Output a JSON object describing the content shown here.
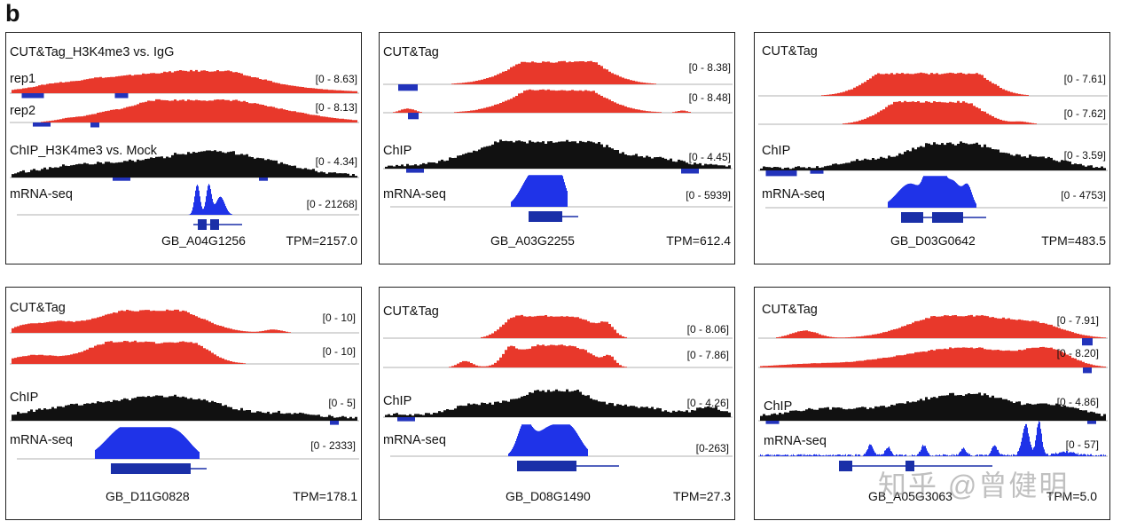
{
  "panel_letter": "b",
  "panels": [
    {
      "tracks": [
        {
          "label": "CUT&Tag_H3K4me3 vs. IgG",
          "range": ""
        },
        {
          "label": "rep1",
          "range": "[0 - 8.63]"
        },
        {
          "label": "rep2",
          "range": "[0 - 8.13]"
        },
        {
          "label": "ChIP_H3K4me3 vs. Mock",
          "range": "[0 - 4.34]"
        },
        {
          "label": "mRNA-seq",
          "range": "[0 - 21268]"
        }
      ],
      "gene": "GB_A04G1256",
      "tpm": "TPM=2157.0"
    },
    {
      "tracks": [
        {
          "label": "CUT&Tag",
          "range": "[0 - 8.38]"
        },
        {
          "label": "",
          "range": "[0 - 8.48]"
        },
        {
          "label": "ChIP",
          "range": "[0 - 4.45]"
        },
        {
          "label": "mRNA-seq",
          "range": "[0 - 5939]"
        }
      ],
      "gene": "GB_A03G2255",
      "tpm": "TPM=612.4"
    },
    {
      "tracks": [
        {
          "label": "CUT&Tag",
          "range": "[0 - 7.61]"
        },
        {
          "label": "",
          "range": "[0 - 7.62]"
        },
        {
          "label": "ChIP",
          "range": "[0 - 3.59]"
        },
        {
          "label": "mRNA-seq",
          "range": "[0 - 4753]"
        }
      ],
      "gene": "GB_D03G0642",
      "tpm": "TPM=483.5"
    },
    {
      "tracks": [
        {
          "label": "CUT&Tag",
          "range": "[0 - 10]"
        },
        {
          "label": "",
          "range": "[0 - 10]"
        },
        {
          "label": "ChIP",
          "range": "[0 - 5]"
        },
        {
          "label": "mRNA-seq",
          "range": "[0 - 2333]"
        }
      ],
      "gene": "GB_D11G0828",
      "tpm": "TPM=178.1"
    },
    {
      "tracks": [
        {
          "label": "CUT&Tag",
          "range": "[0 - 8.06]"
        },
        {
          "label": "",
          "range": "[0 - 7.86]"
        },
        {
          "label": "ChIP",
          "range": "[0 - 4.26]"
        },
        {
          "label": "mRNA-seq",
          "range": "[0-263]"
        }
      ],
      "gene": "GB_D08G1490",
      "tpm": "TPM=27.3"
    },
    {
      "tracks": [
        {
          "label": "CUT&Tag",
          "range": "[0 - 7.91]"
        },
        {
          "label": "",
          "range": "[0 - 8.20]"
        },
        {
          "label": "ChIP",
          "range": "[0 - 4.86]"
        },
        {
          "label": "mRNA-seq",
          "range": "[0 - 57]"
        }
      ],
      "gene": "GB_A05G3063",
      "tpm": "TPM=5.0"
    }
  ],
  "watermark": "知乎 @曾健明",
  "colors": {
    "cuttag": "#e8382b",
    "chip": "#111111",
    "rna": "#1f33e8",
    "negative": "#2233bb",
    "gene": "#1a2fa8"
  }
}
